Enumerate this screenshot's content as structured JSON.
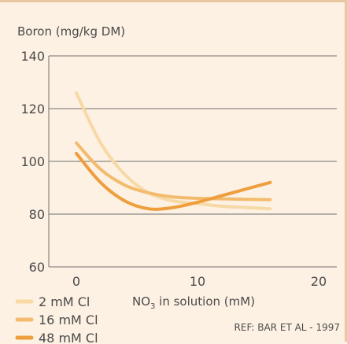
{
  "chart_data": {
    "type": "line",
    "ylabel": "Boron (mg/kg DM)",
    "xlabel_main": "NO",
    "xlabel_sub": "3",
    "xlabel_rest": " in solution (mM)",
    "xlim": [
      0,
      20
    ],
    "ylim": [
      60,
      140
    ],
    "xticks": [
      0,
      10,
      20
    ],
    "yticks": [
      60,
      80,
      100,
      120,
      140
    ],
    "grid": "horizontal",
    "legend_position": "bottom-left",
    "reference": "REF: BAR ET AL - 1997",
    "series": [
      {
        "name": "2 mM Cl",
        "color": "#f7d9a6",
        "x": [
          0,
          2,
          4,
          6,
          8,
          10,
          12,
          14,
          16
        ],
        "y": [
          126,
          107,
          95,
          88,
          85,
          84,
          83,
          82.5,
          82
        ]
      },
      {
        "name": "16 mM Cl",
        "color": "#f3bb6e",
        "x": [
          0,
          2,
          4,
          6,
          8,
          10,
          12,
          14,
          16
        ],
        "y": [
          107,
          97,
          91,
          88,
          86.5,
          86,
          85.8,
          85.6,
          85.5
        ]
      },
      {
        "name": "48 mM Cl",
        "color": "#ee9e3c",
        "x": [
          0,
          2,
          4,
          6,
          8,
          10,
          12,
          14,
          16
        ],
        "y": [
          103,
          92,
          85,
          82,
          82.5,
          84.5,
          87,
          89.5,
          92
        ]
      }
    ]
  }
}
